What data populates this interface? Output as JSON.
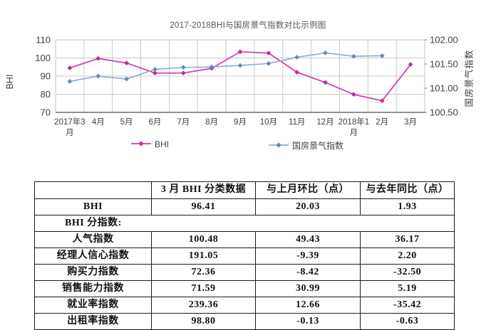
{
  "chart": {
    "title": "2017-2018BHI与国房景气指数对比示例图",
    "left_axis_title": "BHI",
    "right_axis_title": "国房景气指数"
  },
  "chart_data": {
    "type": "line",
    "title": "2017-2018BHI与国房景气指数对比示例图",
    "categories": [
      "2017年3月",
      "4月",
      "5月",
      "6月",
      "7月",
      "8月",
      "9月",
      "10月",
      "11月",
      "12月",
      "2018年1月",
      "2月",
      "3月"
    ],
    "x_tick_labels": [
      "2017年3\n月",
      "4月",
      "5月",
      "6月",
      "7月",
      "8月",
      "9月",
      "10月",
      "11月",
      "12月",
      "2018年1\n月",
      "2月",
      "3月"
    ],
    "left_axis": {
      "title": "BHI",
      "min": 70,
      "max": 110,
      "step": 10,
      "tick_labels": [
        "110",
        "100",
        "90",
        "80",
        "70"
      ]
    },
    "right_axis": {
      "title": "国房景气指数",
      "min": 100.5,
      "max": 102.0,
      "step": 0.5,
      "tick_labels": [
        "102.00",
        "101.50",
        "101.00",
        "100.50"
      ]
    },
    "grid": true,
    "legend_position": "bottom",
    "series": [
      {
        "name": "BHI",
        "axis": "left",
        "line_color": "#d13ab0",
        "marker_color": "#b92f9c",
        "values": [
          94.48,
          99.7,
          97.2,
          91.7,
          91.7,
          94.3,
          103.4,
          102.7,
          92.1,
          86.5,
          79.9,
          76.38,
          96.41
        ]
      },
      {
        "name": "国房景气指数",
        "axis": "right",
        "line_color": "#92b1ca",
        "marker_color": "#5f8cb3",
        "values": [
          101.14,
          101.25,
          101.19,
          101.39,
          101.43,
          101.44,
          101.47,
          101.51,
          101.64,
          101.73,
          101.66,
          101.67,
          null
        ]
      }
    ],
    "colors": {
      "grid": "#c9c9c9",
      "plot_border": "#c2c2c2",
      "axis_line": "#6b6b6b",
      "tick_text": "#3f3f3f"
    }
  },
  "table": {
    "headers": [
      "",
      "3 月 BHI 分类数据",
      "与上月环比（点）",
      "与去年同比（点）"
    ],
    "rows": [
      {
        "label": "BHI",
        "section": false,
        "values": [
          "96.41",
          "20.03",
          "1.93"
        ]
      },
      {
        "label": "BHI 分指数:",
        "section": true,
        "values": []
      },
      {
        "label": "人气指数",
        "section": false,
        "values": [
          "100.48",
          "49.43",
          "36.17"
        ]
      },
      {
        "label": "经理人信心指数",
        "section": false,
        "values": [
          "191.05",
          "-9.39",
          "2.20"
        ]
      },
      {
        "label": "购买力指数",
        "section": false,
        "values": [
          "72.36",
          "-8.42",
          "-32.50"
        ]
      },
      {
        "label": "销售能力指数",
        "section": false,
        "values": [
          "71.59",
          "30.99",
          "5.19"
        ]
      },
      {
        "label": "就业率指数",
        "section": false,
        "values": [
          "239.36",
          "12.66",
          "-35.42"
        ]
      },
      {
        "label": "出租率指数",
        "section": false,
        "values": [
          "98.80",
          "-0.13",
          "-0.63"
        ]
      }
    ]
  }
}
